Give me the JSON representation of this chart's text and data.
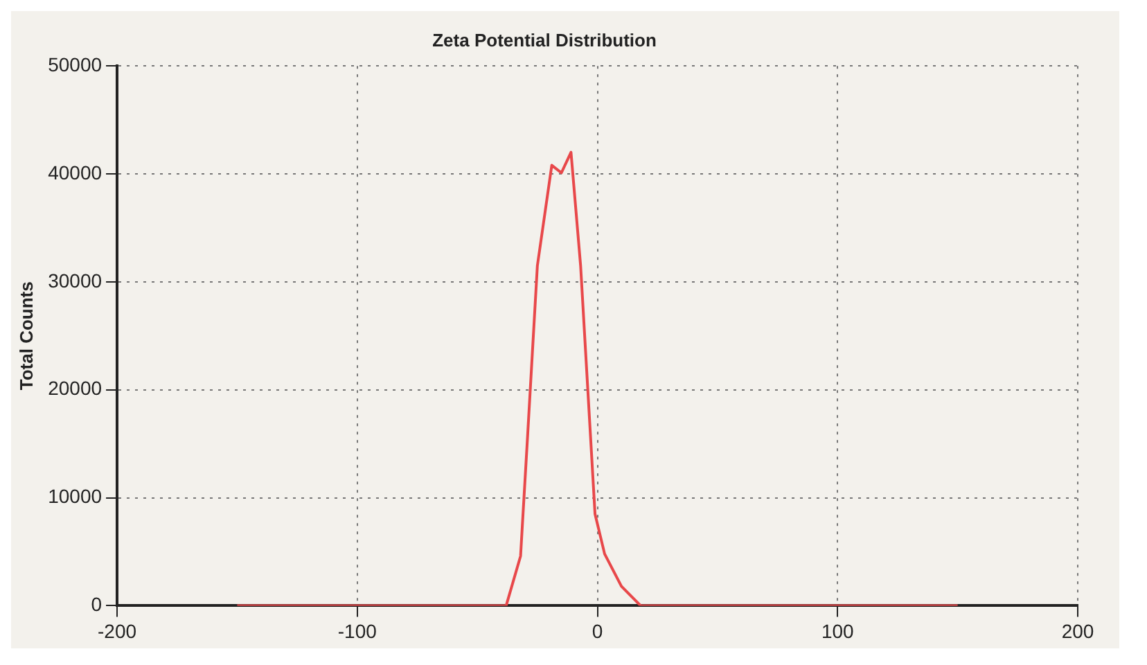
{
  "chart_data": {
    "type": "line",
    "title": "Zeta Potential Distribution",
    "ylabel": "Total Counts",
    "x": [
      -150,
      -100,
      -50,
      -38,
      -32,
      -29,
      -25,
      -19,
      -15,
      -11,
      -7,
      -1,
      3,
      10,
      18,
      50,
      100,
      150
    ],
    "series": [
      {
        "color": "#e8484a",
        "values": [
          0,
          0,
          0,
          0,
          4600,
          16000,
          31500,
          40800,
          40100,
          42000,
          31500,
          8500,
          4800,
          1800,
          0,
          0,
          0,
          0
        ]
      }
    ],
    "xlim": [
      -200,
      200
    ],
    "xticks": [
      -200,
      -100,
      0,
      100,
      200
    ],
    "ylim": [
      0,
      50000
    ],
    "yticks": [
      0,
      10000,
      20000,
      30000,
      40000,
      50000
    ],
    "grid": true,
    "legend": false,
    "marker": "none",
    "line_style": "solid"
  }
}
